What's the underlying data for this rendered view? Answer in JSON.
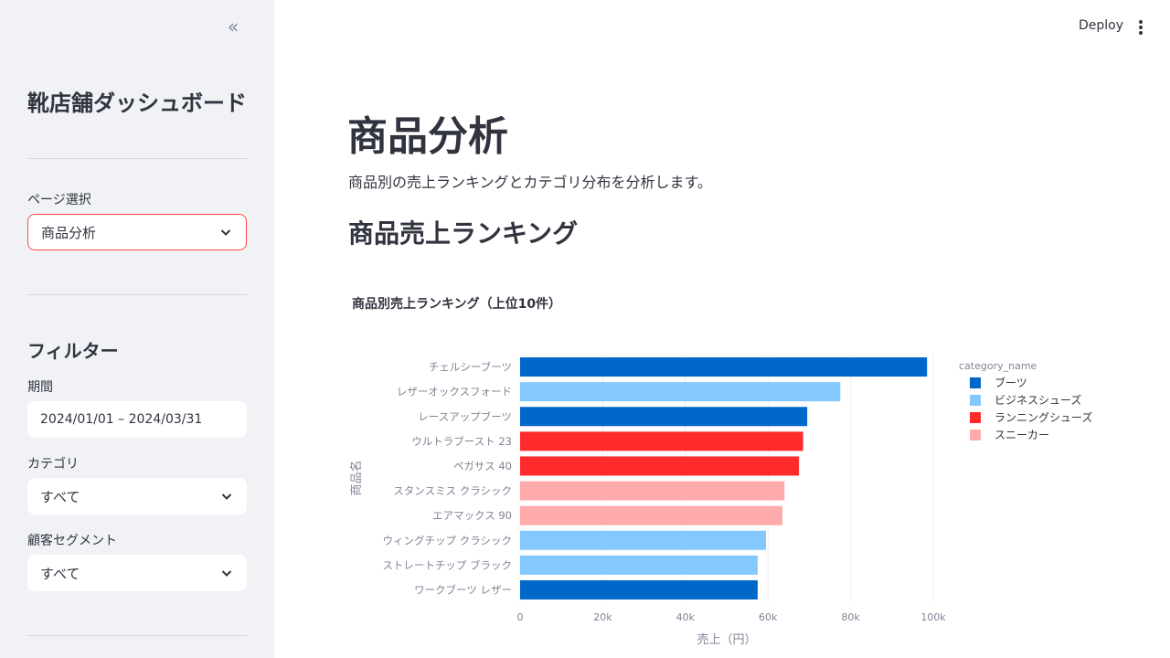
{
  "sidebar": {
    "collapse_icon": "double-chevron-left-icon",
    "app_title": "靴店舗ダッシュボード",
    "page_select": {
      "label": "ページ選択",
      "value": "商品分析"
    },
    "filter_title": "フィルター",
    "period": {
      "label": "期間",
      "value": "2024/01/01 – 2024/03/31"
    },
    "category": {
      "label": "カテゴリ",
      "value": "すべて"
    },
    "segment": {
      "label": "顧客セグメント",
      "value": "すべて"
    }
  },
  "header": {
    "deploy_label": "Deploy",
    "menu_icon": "vertical-dots-icon"
  },
  "main": {
    "title": "商品分析",
    "description": "商品別の売上ランキングとカテゴリ分布を分析します。",
    "section_title": "商品売上ランキング"
  },
  "chart_data": {
    "type": "bar",
    "orientation": "horizontal",
    "title": "商品別売上ランキング（上位10件）",
    "xlabel": "売上（円）",
    "ylabel": "商品名",
    "xlim": [
      0,
      100000
    ],
    "xticks": [
      0,
      20000,
      40000,
      60000,
      80000,
      100000
    ],
    "xtick_labels": [
      "0",
      "20k",
      "40k",
      "60k",
      "80k",
      "100k"
    ],
    "legend_title": "category_name",
    "legend_position": "right",
    "categories": [
      {
        "name": "ブーツ",
        "color": "#0068c9"
      },
      {
        "name": "ビジネスシューズ",
        "color": "#83c9ff"
      },
      {
        "name": "ランニングシューズ",
        "color": "#ff2b2b"
      },
      {
        "name": "スニーカー",
        "color": "#ffabab"
      }
    ],
    "bars": [
      {
        "label": "チェルシーブーツ",
        "value": 98500,
        "category": "ブーツ"
      },
      {
        "label": "レザーオックスフォード",
        "value": 77500,
        "category": "ビジネスシューズ"
      },
      {
        "label": "レースアップブーツ",
        "value": 69500,
        "category": "ブーツ"
      },
      {
        "label": "ウルトラブースト 23",
        "value": 68500,
        "category": "ランニングシューズ"
      },
      {
        "label": "ペガサス 40",
        "value": 67500,
        "category": "ランニングシューズ"
      },
      {
        "label": "スタンスミス クラシック",
        "value": 64000,
        "category": "スニーカー"
      },
      {
        "label": "エアマックス 90",
        "value": 63500,
        "category": "スニーカー"
      },
      {
        "label": "ウィングチップ クラシック",
        "value": 59500,
        "category": "ビジネスシューズ"
      },
      {
        "label": "ストレートチップ ブラック",
        "value": 57500,
        "category": "ビジネスシューズ"
      },
      {
        "label": "ワークブーツ レザー",
        "value": 57500,
        "category": "ブーツ"
      }
    ]
  }
}
